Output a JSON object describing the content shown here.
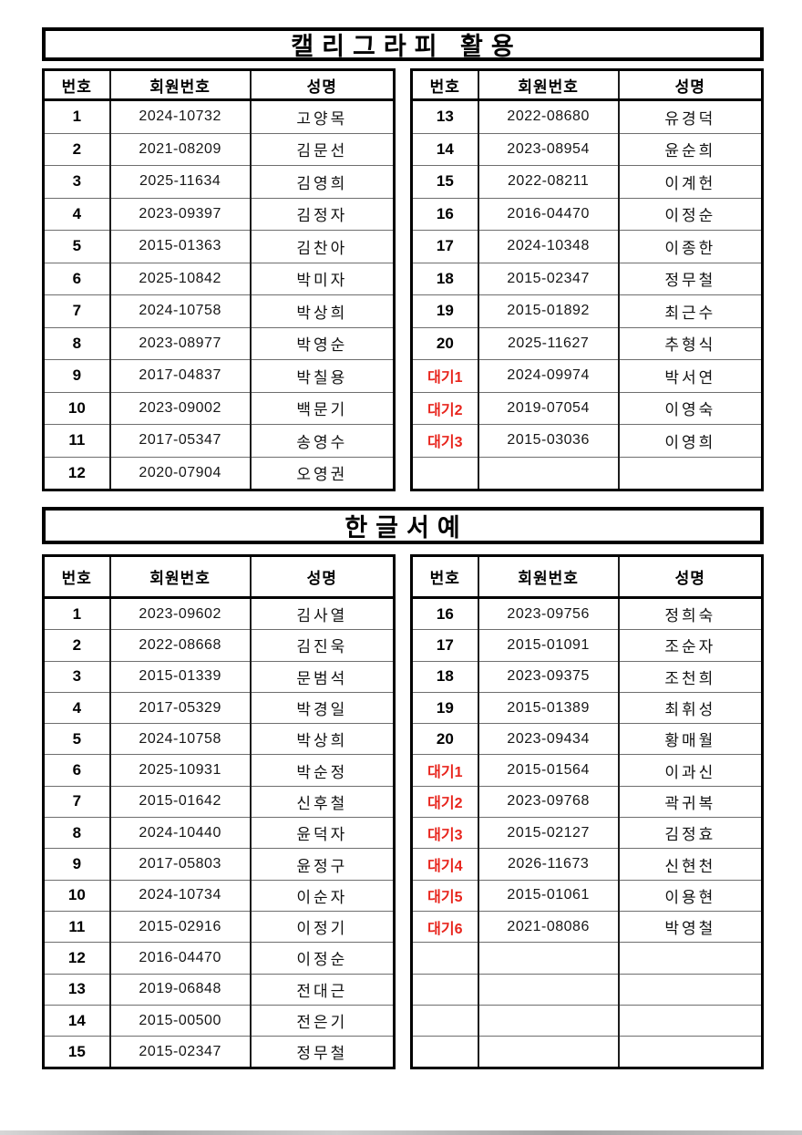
{
  "colors": {
    "wait_red": "#e8251d",
    "border_black": "#000000",
    "row_line_gray": "#6e6e6e"
  },
  "sections": [
    {
      "title": "캘리그라피 활용",
      "headers": [
        "번호",
        "회원번호",
        "성명"
      ],
      "left_rows": [
        [
          "1",
          "2024-10732",
          "고양목"
        ],
        [
          "2",
          "2021-08209",
          "김문선"
        ],
        [
          "3",
          "2025-11634",
          "김영희"
        ],
        [
          "4",
          "2023-09397",
          "김정자"
        ],
        [
          "5",
          "2015-01363",
          "김찬아"
        ],
        [
          "6",
          "2025-10842",
          "박미자"
        ],
        [
          "7",
          "2024-10758",
          "박상희"
        ],
        [
          "8",
          "2023-08977",
          "박영순"
        ],
        [
          "9",
          "2017-04837",
          "박칠용"
        ],
        [
          "10",
          "2023-09002",
          "백문기"
        ],
        [
          "11",
          "2017-05347",
          "송영수"
        ],
        [
          "12",
          "2020-07904",
          "오영권"
        ]
      ],
      "right_rows": [
        [
          "13",
          "2022-08680",
          "유경덕"
        ],
        [
          "14",
          "2023-08954",
          "윤순희"
        ],
        [
          "15",
          "2022-08211",
          "이계헌"
        ],
        [
          "16",
          "2016-04470",
          "이정순"
        ],
        [
          "17",
          "2024-10348",
          "이종한"
        ],
        [
          "18",
          "2015-02347",
          "정무철"
        ],
        [
          "19",
          "2015-01892",
          "최근수"
        ],
        [
          "20",
          "2025-11627",
          "추형식"
        ],
        [
          "대기1",
          "2024-09974",
          "박서연"
        ],
        [
          "대기2",
          "2019-07054",
          "이영숙"
        ],
        [
          "대기3",
          "2015-03036",
          "이영희"
        ],
        [
          "",
          "",
          ""
        ]
      ]
    },
    {
      "title": "한글서예",
      "headers": [
        "번호",
        "회원번호",
        "성명"
      ],
      "left_rows": [
        [
          "1",
          "2023-09602",
          "김사열"
        ],
        [
          "2",
          "2022-08668",
          "김진욱"
        ],
        [
          "3",
          "2015-01339",
          "문범석"
        ],
        [
          "4",
          "2017-05329",
          "박경일"
        ],
        [
          "5",
          "2024-10758",
          "박상희"
        ],
        [
          "6",
          "2025-10931",
          "박순정"
        ],
        [
          "7",
          "2015-01642",
          "신후철"
        ],
        [
          "8",
          "2024-10440",
          "윤덕자"
        ],
        [
          "9",
          "2017-05803",
          "윤정구"
        ],
        [
          "10",
          "2024-10734",
          "이순자"
        ],
        [
          "11",
          "2015-02916",
          "이정기"
        ],
        [
          "12",
          "2016-04470",
          "이정순"
        ],
        [
          "13",
          "2019-06848",
          "전대근"
        ],
        [
          "14",
          "2015-00500",
          "전은기"
        ],
        [
          "15",
          "2015-02347",
          "정무철"
        ]
      ],
      "right_rows": [
        [
          "16",
          "2023-09756",
          "정희숙"
        ],
        [
          "17",
          "2015-01091",
          "조순자"
        ],
        [
          "18",
          "2023-09375",
          "조천희"
        ],
        [
          "19",
          "2015-01389",
          "최휘성"
        ],
        [
          "20",
          "2023-09434",
          "황매월"
        ],
        [
          "대기1",
          "2015-01564",
          "이과신"
        ],
        [
          "대기2",
          "2023-09768",
          "곽귀복"
        ],
        [
          "대기3",
          "2015-02127",
          "김정효"
        ],
        [
          "대기4",
          "2026-11673",
          "신현천"
        ],
        [
          "대기5",
          "2015-01061",
          "이용현"
        ],
        [
          "대기6",
          "2021-08086",
          "박영철"
        ],
        [
          "",
          "",
          ""
        ],
        [
          "",
          "",
          ""
        ],
        [
          "",
          "",
          ""
        ],
        [
          "",
          "",
          ""
        ]
      ]
    }
  ]
}
